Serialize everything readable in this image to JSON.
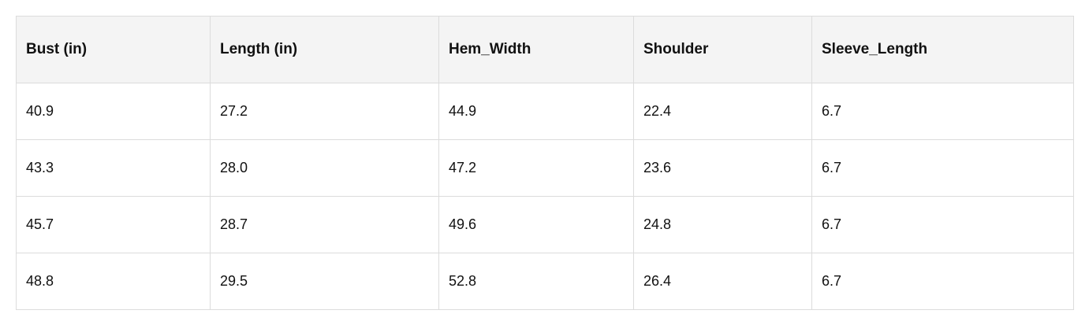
{
  "table": {
    "header": [
      "Bust (in)",
      "Length (in)",
      "Hem_Width",
      "Shoulder",
      "Sleeve_Length"
    ],
    "rows": [
      [
        "40.9",
        "27.2",
        "44.9",
        "22.4",
        "6.7"
      ],
      [
        "43.3",
        "28.0",
        "47.2",
        "23.6",
        "6.7"
      ],
      [
        "45.7",
        "28.7",
        "49.6",
        "24.8",
        "6.7"
      ],
      [
        "48.8",
        "29.5",
        "52.8",
        "26.4",
        "6.7"
      ]
    ]
  }
}
